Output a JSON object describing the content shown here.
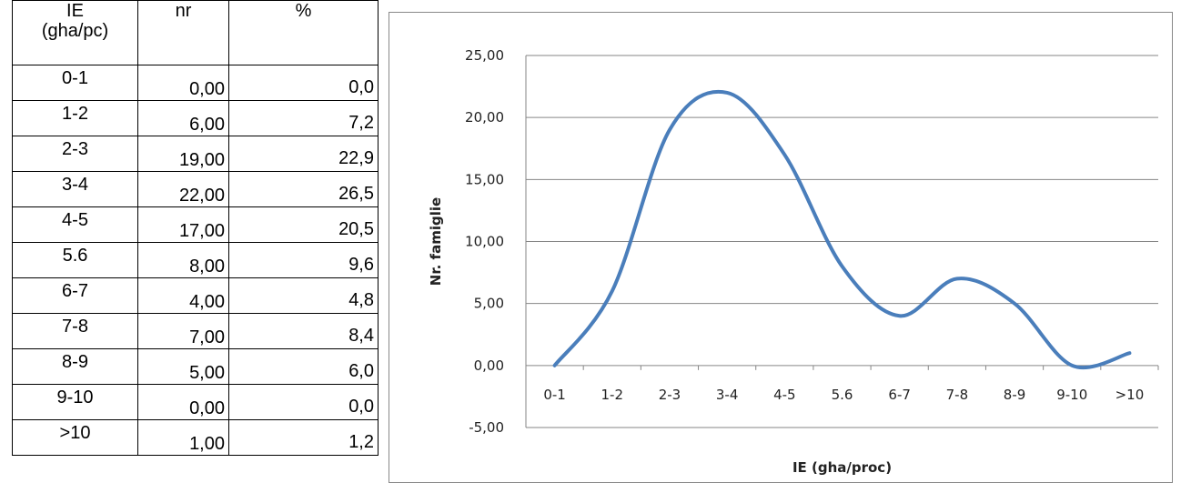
{
  "table": {
    "headers": {
      "ie": "IE\n(gha/pc)",
      "nr": "nr",
      "pct": "%"
    },
    "rows": [
      {
        "ie": "0-1",
        "nr": "0,00",
        "pct": "0,0"
      },
      {
        "ie": "1-2",
        "nr": "6,00",
        "pct": "7,2"
      },
      {
        "ie": "2-3",
        "nr": "19,00",
        "pct": "22,9"
      },
      {
        "ie": "3-4",
        "nr": "22,00",
        "pct": "26,5"
      },
      {
        "ie": "4-5",
        "nr": "17,00",
        "pct": "20,5"
      },
      {
        "ie": "5.6",
        "nr": "8,00",
        "pct": "9,6"
      },
      {
        "ie": "6-7",
        "nr": "4,00",
        "pct": "4,8"
      },
      {
        "ie": "7-8",
        "nr": "7,00",
        "pct": "8,4"
      },
      {
        "ie": "8-9",
        "nr": "5,00",
        "pct": "6,0"
      },
      {
        "ie": "9-10",
        "nr": "0,00",
        "pct": "0,0"
      },
      {
        "ie": ">10",
        "nr": "1,00",
        "pct": "1,2"
      }
    ]
  },
  "chart_data": {
    "type": "line",
    "smooth": true,
    "categories": [
      "0-1",
      "1-2",
      "2-3",
      "3-4",
      "4-5",
      "5.6",
      "6-7",
      "7-8",
      "8-9",
      "9-10",
      ">10"
    ],
    "values": [
      0,
      6,
      19,
      22,
      17,
      8,
      4,
      7,
      5,
      0,
      1
    ],
    "xlabel": "IE (gha/proc)",
    "ylabel": "Nr. famiglie",
    "ylim": [
      -5,
      25
    ],
    "ytick_values": [
      -5,
      0,
      5,
      10,
      15,
      20,
      25
    ],
    "ytick_labels": [
      "-5,00",
      "0,00",
      "5,00",
      "10,00",
      "15,00",
      "20,00",
      "25,00"
    ],
    "grid": true,
    "line_color": "#4a7ebb",
    "gridline_color": "#868686"
  }
}
